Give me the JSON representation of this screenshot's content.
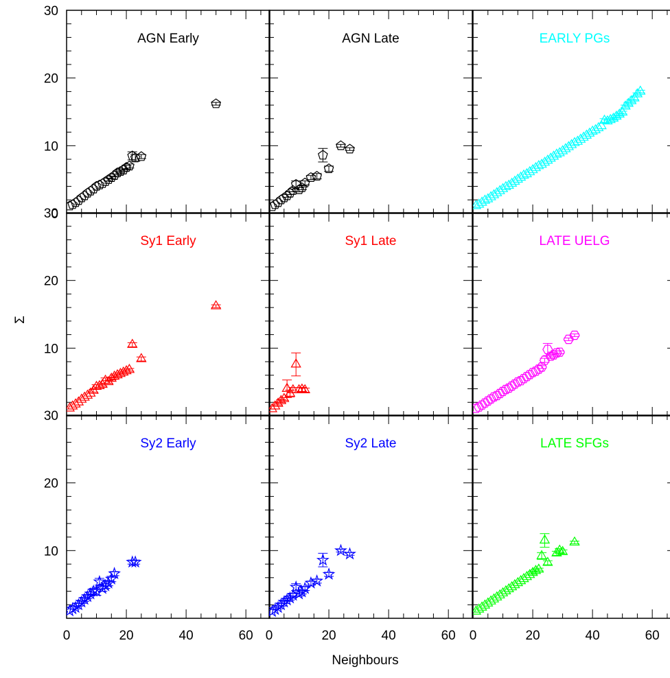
{
  "figure": {
    "xlabel": "Neighbours",
    "ylabel": "Σ",
    "xlim": [
      0,
      68
    ],
    "ylim": [
      0,
      30
    ],
    "xticks": [
      0,
      20,
      40,
      60
    ],
    "yticks": [
      0,
      10,
      20,
      30
    ]
  },
  "chart_data": [
    {
      "type": "scatter",
      "title": "AGN Early",
      "color": "#000000",
      "marker": "pentagon",
      "x": [
        1,
        2,
        3,
        4,
        5,
        6,
        7,
        8,
        9,
        10,
        11,
        12,
        13,
        14,
        15,
        16,
        17,
        18,
        19,
        20,
        21,
        22,
        23,
        25,
        50
      ],
      "y": [
        1.1,
        1.3,
        1.6,
        1.9,
        2.3,
        2.6,
        3.0,
        3.3,
        3.6,
        4.0,
        4.2,
        4.4,
        4.7,
        5.0,
        5.3,
        5.6,
        6.0,
        6.2,
        6.4,
        6.8,
        7.0,
        8.5,
        8.2,
        8.4,
        16.2
      ],
      "yerr": [
        0.1,
        0.1,
        0.1,
        0.1,
        0.1,
        0.1,
        0.1,
        0.1,
        0.1,
        0.1,
        0.1,
        0.1,
        0.1,
        0.2,
        0.2,
        0.2,
        0.2,
        0.2,
        0.2,
        0.3,
        0.3,
        0.6,
        0.5,
        0.3,
        0.2
      ]
    },
    {
      "type": "scatter",
      "title": "AGN Late",
      "color": "#000000",
      "marker": "pentagon",
      "x": [
        1,
        2,
        3,
        4,
        5,
        6,
        7,
        8,
        9,
        10,
        11,
        12,
        14,
        16,
        18,
        20,
        24,
        27
      ],
      "y": [
        1.0,
        1.3,
        1.6,
        2.0,
        2.3,
        2.6,
        3.0,
        3.4,
        4.3,
        3.5,
        3.8,
        4.5,
        5.3,
        5.5,
        8.6,
        6.6,
        10.0,
        9.5
      ],
      "yerr": [
        0.1,
        0.1,
        0.1,
        0.1,
        0.1,
        0.2,
        0.2,
        0.2,
        0.5,
        0.3,
        0.3,
        0.3,
        0.3,
        0.4,
        1.0,
        0.4,
        0.2,
        0.2
      ]
    },
    {
      "type": "scatter",
      "title": "EARLY PGs",
      "color": "#00ffff",
      "marker": "triangle",
      "x": [
        1,
        2,
        3,
        4,
        5,
        6,
        7,
        8,
        9,
        10,
        11,
        12,
        13,
        14,
        15,
        16,
        17,
        18,
        19,
        20,
        21,
        22,
        23,
        24,
        25,
        26,
        27,
        28,
        29,
        30,
        31,
        32,
        33,
        34,
        35,
        36,
        37,
        38,
        39,
        40,
        41,
        42,
        43,
        44,
        45,
        46,
        47,
        48,
        49,
        50,
        51,
        52,
        53,
        54,
        55,
        56
      ],
      "y": [
        1.1,
        1.3,
        1.6,
        1.9,
        2.1,
        2.4,
        2.7,
        3.0,
        3.3,
        3.6,
        3.9,
        4.1,
        4.4,
        4.7,
        5.0,
        5.3,
        5.6,
        5.8,
        6.1,
        6.4,
        6.7,
        7.0,
        7.2,
        7.5,
        7.8,
        8.1,
        8.4,
        8.7,
        8.9,
        9.2,
        9.5,
        9.8,
        10.1,
        10.4,
        10.6,
        10.9,
        11.2,
        11.5,
        11.8,
        12.1,
        12.3,
        12.6,
        12.9,
        13.7,
        13.6,
        13.8,
        14.0,
        14.3,
        14.6,
        14.9,
        15.8,
        16.2,
        16.6,
        17.0,
        17.6,
        18.0
      ],
      "yerr": [
        0.1,
        0.1,
        0.1,
        0.1,
        0.1,
        0.1,
        0.1,
        0.1,
        0.1,
        0.1,
        0.1,
        0.1,
        0.1,
        0.1,
        0.1,
        0.1,
        0.1,
        0.1,
        0.1,
        0.1,
        0.1,
        0.1,
        0.1,
        0.1,
        0.1,
        0.1,
        0.1,
        0.1,
        0.1,
        0.1,
        0.1,
        0.1,
        0.1,
        0.1,
        0.1,
        0.1,
        0.1,
        0.1,
        0.1,
        0.1,
        0.1,
        0.1,
        0.1,
        0.3,
        0.2,
        0.2,
        0.2,
        0.2,
        0.2,
        0.2,
        0.2,
        0.2,
        0.2,
        0.2,
        0.2,
        0.2
      ]
    },
    {
      "type": "scatter",
      "title": "Sy1 Early",
      "color": "#ff0000",
      "marker": "triangle",
      "x": [
        1,
        2,
        3,
        4,
        5,
        6,
        7,
        8,
        9,
        10,
        11,
        12,
        13,
        14,
        15,
        16,
        17,
        18,
        19,
        20,
        21,
        22,
        25,
        50
      ],
      "y": [
        1.1,
        1.4,
        1.7,
        2.0,
        2.4,
        2.7,
        3.0,
        3.3,
        3.7,
        4.3,
        4.4,
        4.6,
        5.2,
        5.0,
        5.5,
        5.8,
        6.0,
        6.2,
        6.4,
        6.6,
        6.8,
        10.5,
        8.4,
        16.2
      ],
      "yerr": [
        0.1,
        0.1,
        0.1,
        0.1,
        0.1,
        0.1,
        0.1,
        0.1,
        0.2,
        0.3,
        0.2,
        0.2,
        0.4,
        0.2,
        0.2,
        0.2,
        0.2,
        0.2,
        0.2,
        0.2,
        0.2,
        0.3,
        0.3,
        0.2
      ]
    },
    {
      "type": "scatter",
      "title": "Sy1 Late",
      "color": "#ff0000",
      "marker": "triangle",
      "x": [
        1,
        2,
        3,
        4,
        5,
        6,
        7,
        8,
        9,
        10,
        11,
        12
      ],
      "y": [
        1.0,
        1.4,
        1.8,
        2.2,
        2.5,
        4.0,
        3.3,
        3.8,
        7.6,
        3.8,
        3.9,
        3.8
      ],
      "yerr": [
        0.1,
        0.1,
        0.2,
        0.2,
        0.2,
        1.3,
        0.5,
        0.4,
        1.7,
        0.4,
        0.3,
        0.3
      ]
    },
    {
      "type": "scatter",
      "title": "LATE UELG",
      "color": "#ff00ff",
      "marker": "hexagon",
      "x": [
        1,
        2,
        3,
        4,
        5,
        6,
        7,
        8,
        9,
        10,
        11,
        12,
        13,
        14,
        15,
        16,
        17,
        18,
        19,
        20,
        21,
        22,
        23,
        24,
        25,
        26,
        27,
        28,
        29,
        32,
        34
      ],
      "y": [
        1.1,
        1.3,
        1.6,
        1.9,
        2.2,
        2.5,
        2.8,
        3.0,
        3.3,
        3.6,
        3.9,
        4.1,
        4.4,
        4.7,
        5.0,
        5.2,
        5.5,
        5.8,
        6.1,
        6.4,
        6.6,
        6.9,
        7.2,
        8.2,
        9.8,
        8.8,
        9.0,
        9.3,
        9.4,
        11.3,
        11.9
      ],
      "yerr": [
        0.1,
        0.1,
        0.1,
        0.1,
        0.1,
        0.1,
        0.1,
        0.1,
        0.1,
        0.1,
        0.1,
        0.1,
        0.1,
        0.1,
        0.1,
        0.1,
        0.1,
        0.1,
        0.1,
        0.1,
        0.1,
        0.1,
        0.2,
        0.3,
        0.9,
        0.3,
        0.3,
        0.3,
        0.2,
        0.2,
        0.2
      ]
    },
    {
      "type": "scatter",
      "title": "Sy2 Early",
      "color": "#0000ff",
      "marker": "star",
      "x": [
        1,
        2,
        3,
        4,
        5,
        6,
        7,
        8,
        9,
        10,
        11,
        12,
        13,
        14,
        15,
        16,
        22,
        23
      ],
      "y": [
        1.1,
        1.4,
        1.6,
        2.0,
        2.4,
        2.8,
        3.2,
        3.6,
        4.0,
        4.0,
        5.4,
        4.4,
        4.8,
        5.2,
        5.8,
        6.6,
        8.3,
        8.3
      ],
      "yerr": [
        0.1,
        0.1,
        0.2,
        0.2,
        0.2,
        0.3,
        0.3,
        0.3,
        0.4,
        0.6,
        0.5,
        0.4,
        0.4,
        0.4,
        0.4,
        0.3,
        0.3,
        0.3
      ]
    },
    {
      "type": "scatter",
      "title": "Sy2 Late",
      "color": "#0000ff",
      "marker": "star",
      "x": [
        1,
        2,
        3,
        4,
        5,
        6,
        7,
        8,
        9,
        10,
        11,
        12,
        14,
        16,
        18,
        20,
        24,
        27
      ],
      "y": [
        1.0,
        1.3,
        1.6,
        2.0,
        2.4,
        2.7,
        3.0,
        3.4,
        4.6,
        3.6,
        3.9,
        4.4,
        5.2,
        5.5,
        8.6,
        6.5,
        10.0,
        9.5
      ],
      "yerr": [
        0.1,
        0.1,
        0.2,
        0.2,
        0.2,
        0.2,
        0.3,
        0.3,
        0.5,
        0.3,
        0.3,
        0.3,
        0.3,
        0.3,
        1.0,
        0.3,
        0.2,
        0.2
      ]
    },
    {
      "type": "scatter",
      "title": "LATE SFGs",
      "color": "#00ff00",
      "marker": "triangle",
      "x": [
        1,
        2,
        3,
        4,
        5,
        6,
        7,
        8,
        9,
        10,
        11,
        12,
        13,
        14,
        15,
        16,
        17,
        18,
        19,
        20,
        21,
        22,
        23,
        24,
        25,
        28,
        29,
        30,
        34
      ],
      "y": [
        1.0,
        1.3,
        1.6,
        1.9,
        2.2,
        2.5,
        2.8,
        3.1,
        3.4,
        3.7,
        4.0,
        4.3,
        4.6,
        4.9,
        5.2,
        5.5,
        5.8,
        6.1,
        6.4,
        6.7,
        7.0,
        7.2,
        9.2,
        11.5,
        8.2,
        9.6,
        10.0,
        9.8,
        11.2
      ],
      "yerr": [
        0.1,
        0.1,
        0.1,
        0.1,
        0.1,
        0.1,
        0.1,
        0.1,
        0.1,
        0.1,
        0.1,
        0.1,
        0.1,
        0.1,
        0.1,
        0.1,
        0.1,
        0.1,
        0.1,
        0.2,
        0.2,
        0.2,
        0.5,
        1.0,
        0.3,
        0.3,
        0.3,
        0.3,
        0.2
      ]
    }
  ]
}
